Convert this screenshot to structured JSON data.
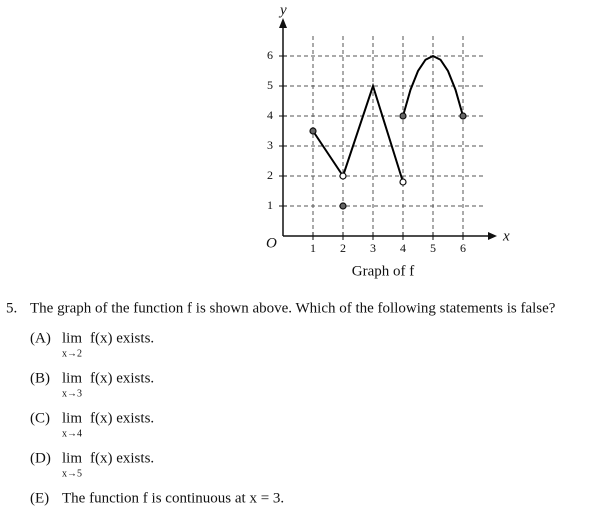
{
  "chart_data": {
    "type": "line",
    "caption": "Graph of f",
    "xlabel": "x",
    "ylabel": "y",
    "origin_label": "O",
    "xlim": [
      0,
      6.7
    ],
    "ylim": [
      0,
      6.7
    ],
    "xticks": [
      1,
      2,
      3,
      4,
      5,
      6
    ],
    "yticks": [
      1,
      2,
      3,
      4,
      5,
      6
    ],
    "grid": true,
    "x": [
      1,
      2,
      null,
      2,
      3,
      4,
      null,
      4,
      4.25,
      4.5,
      4.75,
      5,
      5.25,
      5.5,
      5.75,
      6
    ],
    "series": [
      {
        "color": "#000000",
        "values": [
          3.5,
          2,
          null,
          2,
          5,
          1.8,
          null,
          4,
          4.875,
          5.5,
          5.875,
          6,
          5.875,
          5.5,
          4.875,
          4
        ]
      }
    ],
    "points": {
      "x": [
        1,
        2,
        2,
        4,
        4,
        6
      ],
      "y": [
        3.5,
        2,
        1,
        1.8,
        4,
        4
      ],
      "open": [
        false,
        true,
        false,
        true,
        false,
        false
      ]
    }
  },
  "question": {
    "number": "5.",
    "text": "The graph of the function f is shown above. Which of the following statements is false?",
    "choices": [
      {
        "letter": "(A)",
        "lim": "lim",
        "sub": "x→2",
        "text": "f(x) exists."
      },
      {
        "letter": "(B)",
        "lim": "lim",
        "sub": "x→3",
        "text": "f(x) exists."
      },
      {
        "letter": "(C)",
        "lim": "lim",
        "sub": "x→4",
        "text": "f(x) exists."
      },
      {
        "letter": "(D)",
        "lim": "lim",
        "sub": "x→5",
        "text": "f(x) exists."
      },
      {
        "letter": "(E)",
        "text": "The function f is continuous at x = 3."
      }
    ]
  }
}
